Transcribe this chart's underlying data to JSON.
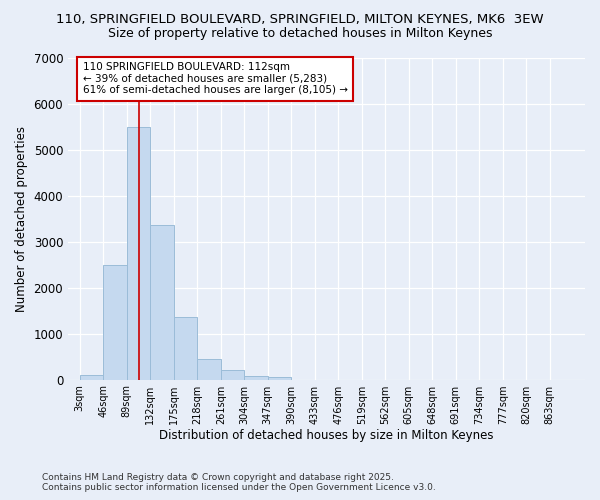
{
  "title_line1": "110, SPRINGFIELD BOULEVARD, SPRINGFIELD, MILTON KEYNES, MK6  3EW",
  "title_line2": "Size of property relative to detached houses in Milton Keynes",
  "xlabel": "Distribution of detached houses by size in Milton Keynes",
  "ylabel": "Number of detached properties",
  "bin_labels": [
    "3sqm",
    "46sqm",
    "89sqm",
    "132sqm",
    "175sqm",
    "218sqm",
    "261sqm",
    "304sqm",
    "347sqm",
    "390sqm",
    "433sqm",
    "476sqm",
    "519sqm",
    "562sqm",
    "605sqm",
    "648sqm",
    "691sqm",
    "734sqm",
    "777sqm",
    "820sqm",
    "863sqm"
  ],
  "bin_edges": [
    3,
    46,
    89,
    132,
    175,
    218,
    261,
    304,
    347,
    390,
    433,
    476,
    519,
    562,
    605,
    648,
    691,
    734,
    777,
    820,
    863
  ],
  "bar_heights": [
    100,
    2500,
    5500,
    3350,
    1350,
    450,
    200,
    80,
    50,
    0,
    0,
    0,
    0,
    0,
    0,
    0,
    0,
    0,
    0,
    0
  ],
  "bar_color": "#c5d9ef",
  "bar_edge_color": "#9bbcd8",
  "vline_x": 112,
  "vline_color": "#cc0000",
  "annotation_text": "110 SPRINGFIELD BOULEVARD: 112sqm\n← 39% of detached houses are smaller (5,283)\n61% of semi-detached houses are larger (8,105) →",
  "annotation_box_color": "#ffffff",
  "annotation_box_edge": "#cc0000",
  "ylim": [
    0,
    7000
  ],
  "yticks": [
    0,
    1000,
    2000,
    3000,
    4000,
    5000,
    6000,
    7000
  ],
  "bg_color": "#e8eef8",
  "footer_line1": "Contains HM Land Registry data © Crown copyright and database right 2025.",
  "footer_line2": "Contains public sector information licensed under the Open Government Licence v3.0.",
  "fig_width": 6.0,
  "fig_height": 5.0,
  "dpi": 100
}
